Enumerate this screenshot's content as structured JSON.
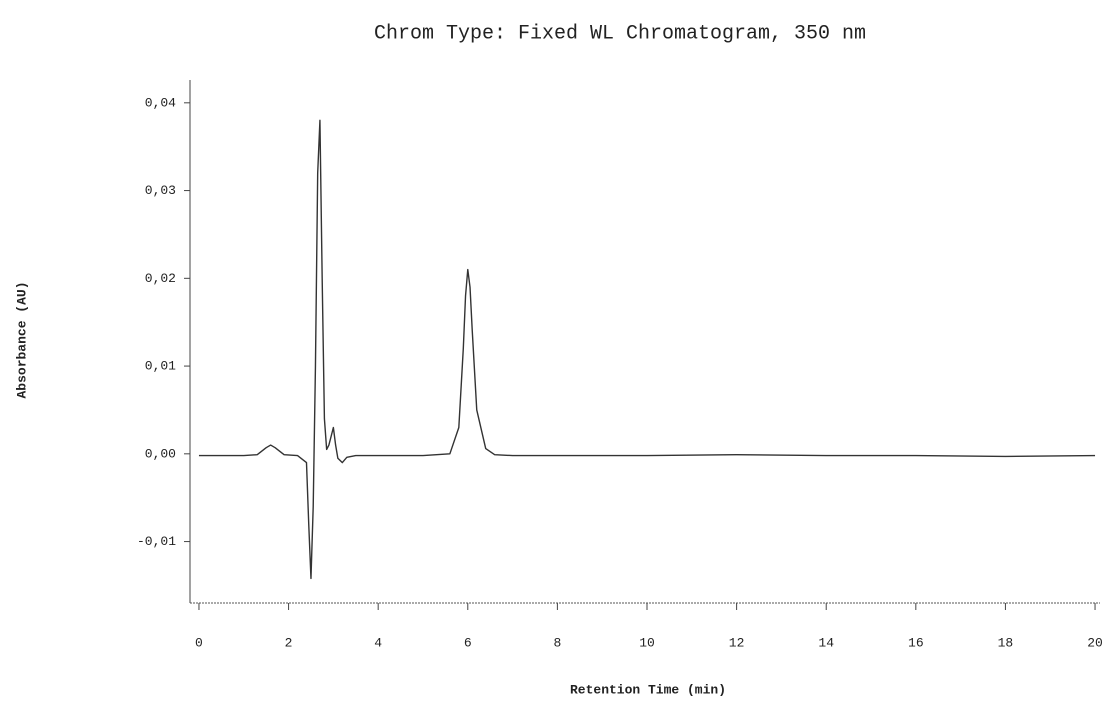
{
  "chart_data": {
    "type": "line",
    "title": "Chrom Type: Fixed WL Chromatogram, 350 nm",
    "xlabel": "Retention Time (min)",
    "ylabel": "Absorbance (AU)",
    "x": [
      0,
      0.5,
      1,
      1.3,
      1.5,
      1.6,
      1.7,
      1.9,
      2.2,
      2.4,
      2.45,
      2.5,
      2.55,
      2.6,
      2.65,
      2.7,
      2.75,
      2.8,
      2.85,
      2.9,
      2.95,
      3.0,
      3.05,
      3.1,
      3.2,
      3.3,
      3.5,
      4,
      5,
      5.6,
      5.8,
      5.9,
      5.95,
      6.0,
      6.05,
      6.1,
      6.2,
      6.4,
      6.6,
      7,
      8,
      10,
      12,
      14,
      16,
      18,
      20
    ],
    "values": [
      -0.0002,
      -0.0002,
      -0.0002,
      -0.0001,
      0.0007,
      0.001,
      0.0007,
      -0.0001,
      -0.0002,
      -0.001,
      -0.008,
      -0.0142,
      -0.006,
      0.01,
      0.032,
      0.038,
      0.02,
      0.004,
      0.0005,
      0.001,
      0.002,
      0.003,
      0.001,
      -0.0005,
      -0.001,
      -0.0004,
      -0.0002,
      -0.0002,
      -0.0002,
      0.0,
      0.003,
      0.012,
      0.018,
      0.021,
      0.019,
      0.014,
      0.005,
      0.0006,
      -0.0001,
      -0.0002,
      -0.0002,
      -0.0002,
      -0.0001,
      -0.0002,
      -0.0002,
      -0.0003,
      -0.0002
    ],
    "color": "#333333",
    "xlim": [
      -0.2,
      20.2
    ],
    "xticks": [
      0,
      2,
      4,
      6,
      8,
      10,
      12,
      14,
      16,
      18,
      20
    ],
    "ylim": [
      -0.017,
      0.0426
    ],
    "yticks": [
      {
        "value": -0.01,
        "label": "-0,01"
      },
      {
        "value": 0.0,
        "label": "0,00"
      },
      {
        "value": 0.01,
        "label": "0,01"
      },
      {
        "value": 0.02,
        "label": "0,02"
      },
      {
        "value": 0.03,
        "label": "0,03"
      },
      {
        "value": 0.04,
        "label": "0,04"
      }
    ],
    "grid": false
  }
}
